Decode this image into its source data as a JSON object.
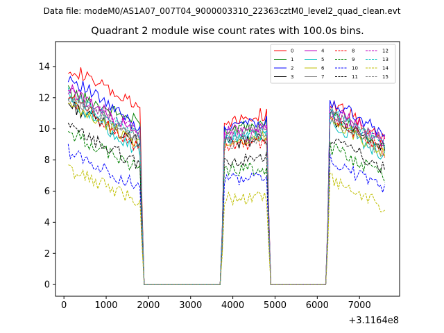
{
  "chart_data": {
    "type": "line",
    "suptitle": "Data file: modeM0/AS1A07_007T04_9000003310_22363cztM0_level2_quad_clean.evt",
    "title": "Quadrant 2 module wise count rates with 100.0s bins.",
    "xlabel": "",
    "ylabel": "",
    "offset_text": "+3.1164e8",
    "xlim": [
      -200,
      7950
    ],
    "ylim": [
      -0.75,
      15.6
    ],
    "xticks": [
      0,
      1000,
      2000,
      3000,
      4000,
      5000,
      6000,
      7000
    ],
    "yticks": [
      0,
      2,
      4,
      6,
      8,
      10,
      12,
      14
    ],
    "grid": false,
    "legend_position": "top-right",
    "gaps": [
      {
        "start": 1900,
        "end": 3700
      },
      {
        "start": 4900,
        "end": 6200
      }
    ],
    "segments": [
      {
        "start": 100,
        "end": 1800,
        "edge": 1850
      },
      {
        "start": 3800,
        "end": 4800,
        "lead": 3750,
        "edge": 4850
      },
      {
        "start": 6300,
        "end": 7600,
        "lead": 6250
      }
    ],
    "series": [
      {
        "name": "0",
        "color": "#ff0000",
        "dash": "solid",
        "levels": [
          14.0,
          10.5,
          11.8
        ],
        "slope": [
          -0.16,
          0.05,
          -0.19
        ]
      },
      {
        "name": "1",
        "color": "#008000",
        "dash": "solid",
        "levels": [
          12.4,
          9.9,
          11.0
        ],
        "slope": [
          -0.12,
          0.03,
          -0.17
        ]
      },
      {
        "name": "2",
        "color": "#0000ff",
        "dash": "solid",
        "levels": [
          13.4,
          10.3,
          11.8
        ],
        "slope": [
          -0.2,
          0.02,
          -0.17
        ]
      },
      {
        "name": "3",
        "color": "#000000",
        "dash": "solid",
        "levels": [
          11.6,
          9.0,
          10.8
        ],
        "slope": [
          -0.15,
          0.03,
          -0.16
        ]
      },
      {
        "name": "4",
        "color": "#bf00bf",
        "dash": "solid",
        "levels": [
          12.6,
          9.8,
          11.2
        ],
        "slope": [
          -0.18,
          0.04,
          -0.15
        ]
      },
      {
        "name": "5",
        "color": "#00bfbf",
        "dash": "solid",
        "levels": [
          11.9,
          9.4,
          10.5
        ],
        "slope": [
          -0.2,
          0.03,
          -0.17
        ]
      },
      {
        "name": "6",
        "color": "#bfbf00",
        "dash": "solid",
        "levels": [
          11.5,
          9.2,
          10.6
        ],
        "slope": [
          -0.14,
          0.03,
          -0.16
        ]
      },
      {
        "name": "7",
        "color": "#808080",
        "dash": "solid",
        "levels": [
          12.1,
          9.6,
          11.0
        ],
        "slope": [
          -0.15,
          0.04,
          -0.15
        ]
      },
      {
        "name": "8",
        "color": "#ff0000",
        "dash": "dashed",
        "levels": [
          12.1,
          8.9,
          10.8
        ],
        "slope": [
          -0.2,
          0.03,
          -0.17
        ]
      },
      {
        "name": "9",
        "color": "#008000",
        "dash": "dashed",
        "levels": [
          9.8,
          7.3,
          8.8
        ],
        "slope": [
          -0.14,
          0.02,
          -0.14
        ]
      },
      {
        "name": "10",
        "color": "#0000ff",
        "dash": "dashed",
        "levels": [
          8.6,
          6.7,
          8.0
        ],
        "slope": [
          -0.14,
          0.02,
          -0.15
        ]
      },
      {
        "name": "11",
        "color": "#000000",
        "dash": "dashed",
        "levels": [
          10.1,
          7.8,
          9.4
        ],
        "slope": [
          -0.14,
          0.03,
          -0.15
        ]
      },
      {
        "name": "12",
        "color": "#bf00bf",
        "dash": "dashed",
        "levels": [
          12.5,
          9.5,
          11.1
        ],
        "slope": [
          -0.16,
          0.03,
          -0.15
        ]
      },
      {
        "name": "13",
        "color": "#00bfbf",
        "dash": "dashed",
        "levels": [
          12.2,
          9.3,
          11.0
        ],
        "slope": [
          -0.16,
          0.03,
          -0.16
        ]
      },
      {
        "name": "14",
        "color": "#bfbf00",
        "dash": "dashed",
        "levels": [
          7.4,
          5.5,
          6.8
        ],
        "slope": [
          -0.12,
          0.02,
          -0.14
        ]
      },
      {
        "name": "15",
        "color": "#808080",
        "dash": "dashed",
        "levels": [
          11.9,
          9.1,
          10.6
        ],
        "slope": [
          -0.15,
          0.03,
          -0.16
        ]
      }
    ]
  }
}
